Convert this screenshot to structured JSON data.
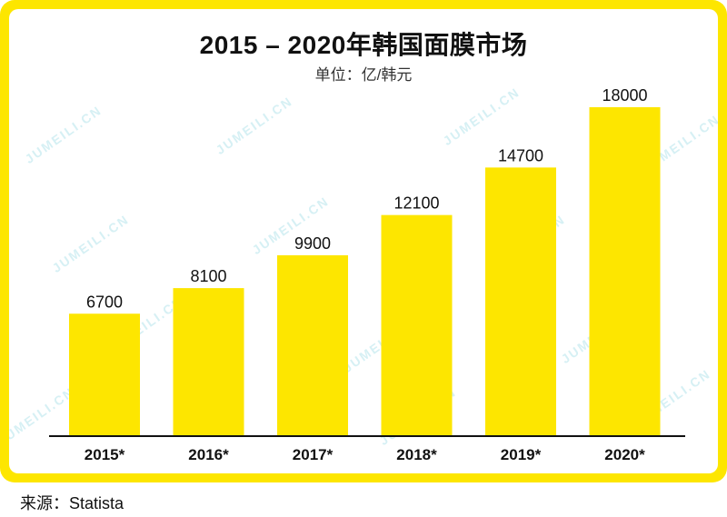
{
  "header": {
    "title": "2015 – 2020年韩国面膜市场",
    "subtitle": "单位：亿/韩元"
  },
  "footer": {
    "source": "来源：Statista"
  },
  "watermark": "JUMEILI.CN",
  "colors": {
    "bar": "#fde600",
    "frame": "#fde600",
    "axis": "#111111",
    "text": "#111111"
  },
  "chart_data": {
    "type": "bar",
    "title": "2015 – 2020年韩国面膜市场",
    "subtitle": "单位：亿/韩元",
    "categories": [
      "2015*",
      "2016*",
      "2017*",
      "2018*",
      "2019*",
      "2020*"
    ],
    "values": [
      6700,
      8100,
      9900,
      12100,
      14700,
      18000
    ],
    "data_labels": [
      "6700",
      "8100",
      "9900",
      "12100",
      "14700",
      "18000"
    ],
    "ylim": [
      0,
      18000
    ],
    "grid": false,
    "legend": "none"
  }
}
